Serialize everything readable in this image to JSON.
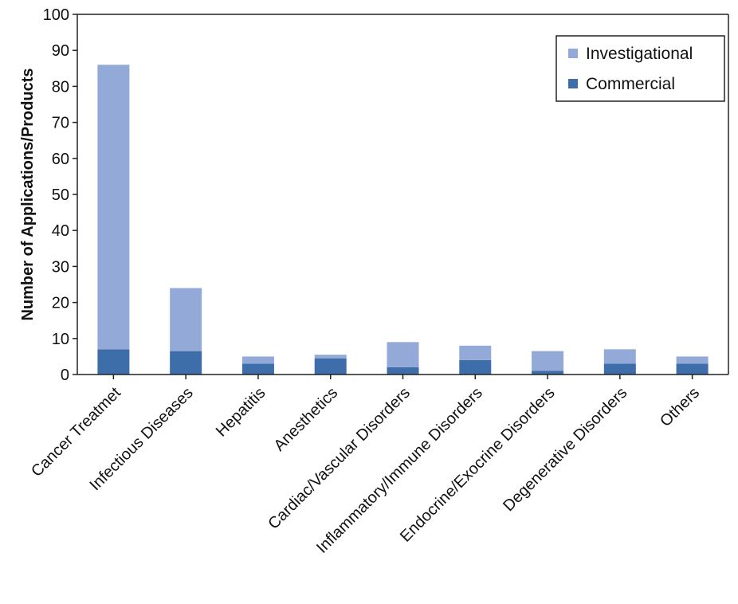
{
  "chart_data": {
    "type": "bar",
    "stacked": true,
    "title": "",
    "xlabel": "",
    "ylabel": "Number of Applications/Products",
    "ylim": [
      0,
      100
    ],
    "yticks": [
      0,
      10,
      20,
      30,
      40,
      50,
      60,
      70,
      80,
      90,
      100
    ],
    "categories": [
      "Cancer Treatmet",
      "Infectious Diseases",
      "Hepatitis",
      "Anesthetics",
      "Cardiac/Vascular Disorders",
      "Inflammatory/Immune Disorders",
      "Endocrine/Exocrine Disorders",
      "Degenerative Disorders",
      "Others"
    ],
    "series": [
      {
        "name": "Commercial",
        "color": "#3d6eaa",
        "values": [
          7,
          6.5,
          3,
          4.5,
          2,
          4,
          1,
          3,
          3
        ]
      },
      {
        "name": "Investigational",
        "color": "#93a9d7",
        "values": [
          79,
          17.5,
          2,
          1,
          7,
          4,
          5.5,
          4,
          2
        ]
      }
    ],
    "legend": {
      "position": "top-right",
      "order": [
        "Investigational",
        "Commercial"
      ]
    },
    "grid": false
  }
}
